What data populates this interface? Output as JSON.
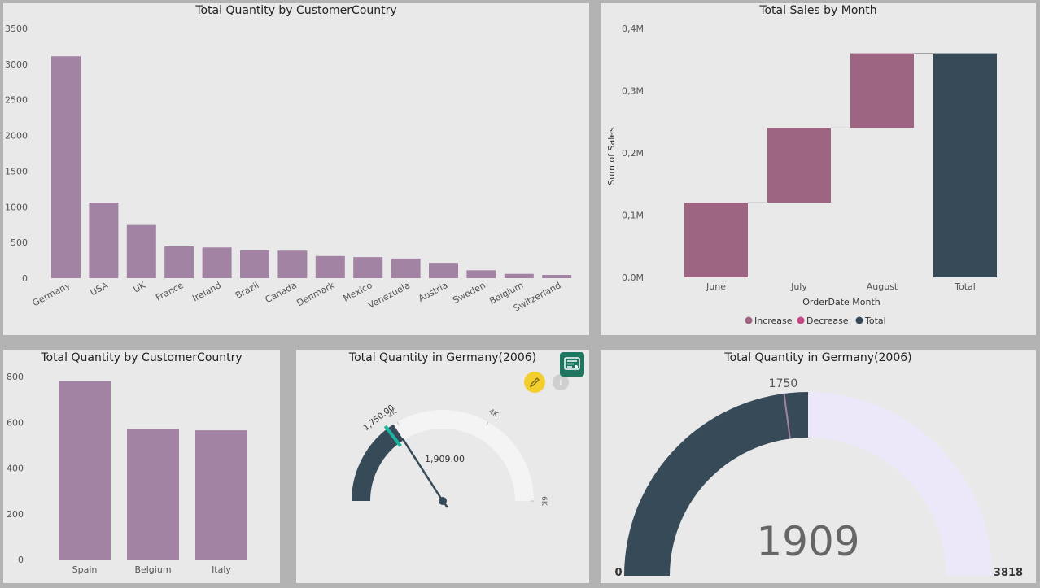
{
  "colors": {
    "bar": "#a383a3",
    "increase": "#9e6582",
    "decrease": "#c34783",
    "total": "#364a58",
    "gauge_track": "#f4f4f4",
    "donut_remain": "#ece8f9",
    "target_marker": "#19b49e",
    "edit_button": "#f2cf2e",
    "form_button": "#1e7560"
  },
  "panels": {
    "country_bar": {
      "title": "Total Quantity by CustomerCountry",
      "chart_data": {
        "type": "bar",
        "title": "Total Quantity by CustomerCountry",
        "categories": [
          "Germany",
          "USA",
          "UK",
          "France",
          "Ireland",
          "Brazil",
          "Canada",
          "Denmark",
          "Mexico",
          "Venezuela",
          "Austria",
          "Sweden",
          "Belgium",
          "Switzerland"
        ],
        "values": [
          3110,
          1060,
          745,
          445,
          430,
          390,
          385,
          310,
          295,
          275,
          215,
          110,
          60,
          45
        ],
        "yticks": [
          "3500",
          "3000",
          "2500",
          "2000",
          "1500",
          "1000",
          "500",
          "0"
        ],
        "ylim": [
          0,
          3500
        ],
        "grid": false
      }
    },
    "waterfall": {
      "title": "Total Sales by Month",
      "ylabel": "Sum of Sales",
      "xlabel": "OrderDate Month",
      "legend": [
        "Increase",
        "Decrease",
        "Total"
      ],
      "chart_data": {
        "type": "bar",
        "subtype": "waterfall",
        "title": "Total Sales by Month",
        "categories": [
          "June",
          "July",
          "August",
          "Total"
        ],
        "values": [
          120000,
          120000,
          120000,
          360000
        ],
        "kinds": [
          "Increase",
          "Increase",
          "Increase",
          "Total"
        ],
        "ylabel": "Sum of Sales",
        "xlabel": "OrderDate Month",
        "yticks": [
          "0,4M",
          "0,3M",
          "0,2M",
          "0,1M",
          "0,0M"
        ],
        "ylim": [
          0,
          400000
        ],
        "legend_position": "bottom-center"
      }
    },
    "country_bar_small": {
      "title": "Total Quantity by CustomerCountry",
      "chart_data": {
        "type": "bar",
        "title": "Total Quantity by CustomerCountry",
        "categories": [
          "Spain",
          "Belgium",
          "Italy"
        ],
        "values": [
          780,
          570,
          565
        ],
        "yticks": [
          "800",
          "600",
          "400",
          "200",
          "0"
        ],
        "ylim": [
          0,
          800
        ]
      }
    },
    "gauge": {
      "title": "Total Quantity in Germany(2006)",
      "target_label": "1,750.00",
      "value_label": "1,909.00",
      "tick_labels": [
        "2K",
        "4K",
        "6K"
      ],
      "info_glyph": "i",
      "chart_data": {
        "type": "gauge",
        "value": 1909,
        "target": 1750,
        "min": 0,
        "max": 6000
      }
    },
    "donut_gauge": {
      "title": "Total Quantity in Germany(2006)",
      "value_label": "1909",
      "min_label": "0",
      "max_label": "3818",
      "target_label": "1750",
      "chart_data": {
        "type": "gauge",
        "value": 1909,
        "target": 1750,
        "min": 0,
        "max": 3818
      }
    }
  },
  "icons": {
    "edit": "pencil-icon",
    "info": "info-icon",
    "form": "form-icon"
  }
}
